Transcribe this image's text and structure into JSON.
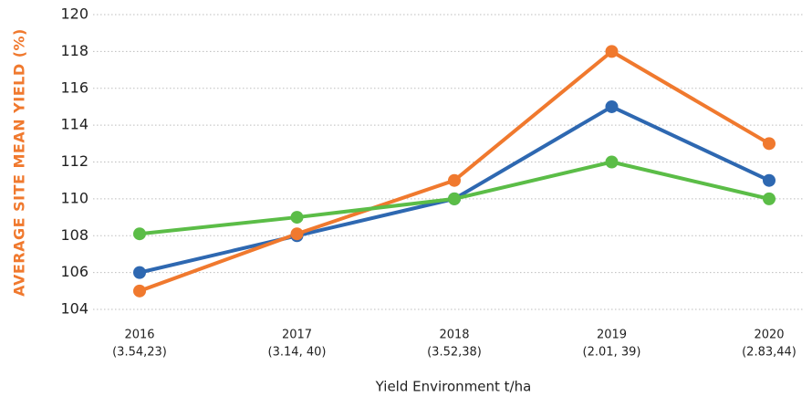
{
  "chart_data": {
    "type": "line",
    "categories": [
      [
        "2016",
        "(3.54,23)"
      ],
      [
        "2017",
        "(3.14, 40)"
      ],
      [
        "2018",
        "(3.52,38)"
      ],
      [
        "2019",
        "(2.01, 39)"
      ],
      [
        "2020",
        "(2.83,44)"
      ]
    ],
    "series": [
      {
        "color": "#2e68b1",
        "values": [
          106,
          108,
          110,
          115,
          111
        ]
      },
      {
        "color": "#f0792e",
        "values": [
          105,
          108.1,
          111,
          118,
          113
        ]
      },
      {
        "color": "#5bbd47",
        "values": [
          108.1,
          109,
          110,
          112,
          110
        ]
      }
    ],
    "xlabel": "Yield Environment t/ha",
    "ylabel": "AVERAGE SITE MEAN YIELD (%)",
    "ylabel_color": "#f0792e",
    "ylim": [
      104,
      120
    ],
    "yticks": [
      104,
      106,
      108,
      110,
      112,
      114,
      116,
      118,
      120
    ],
    "grid": true
  }
}
